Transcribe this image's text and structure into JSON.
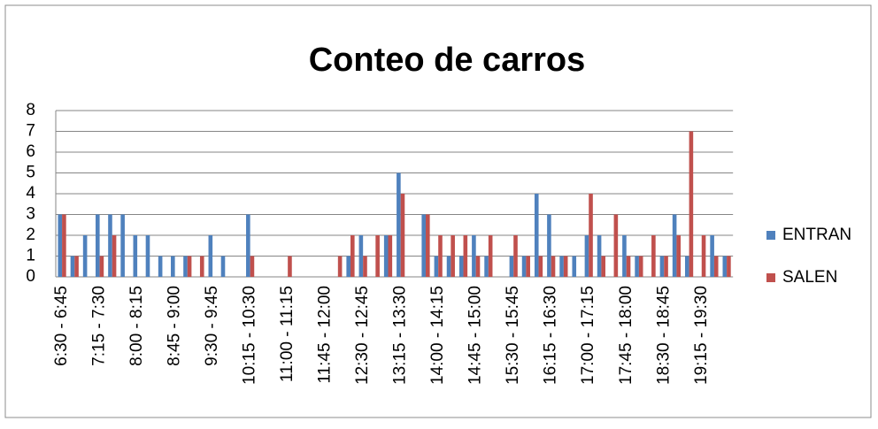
{
  "chart_data": {
    "type": "bar",
    "title": "Conteo de carros",
    "categories": [
      "6:30 - 6:45",
      null,
      null,
      "7:15 - 7:30",
      null,
      null,
      "8:00 - 8:15",
      null,
      null,
      "8:45 - 9:00",
      null,
      null,
      "9:30 - 9:45",
      null,
      null,
      "10:15 - 10:30",
      null,
      null,
      "11:00 - 11:15",
      null,
      null,
      "11:45 - 12:00",
      null,
      null,
      "12:30 - 12:45",
      null,
      null,
      "13:15 - 13:30",
      null,
      null,
      "14:00 - 14:15",
      null,
      null,
      "14:45 - 15:00",
      null,
      null,
      "15:30 - 15:45",
      null,
      null,
      "16:15 - 16:30",
      null,
      null,
      "17:00 - 17:15",
      null,
      null,
      "17:45 - 18:00",
      null,
      null,
      "18:30 - 18:45",
      null,
      null,
      "19:15 - 19:30",
      null,
      null
    ],
    "series": [
      {
        "name": "ENTRAN",
        "color": "#4f81bd",
        "values": [
          3,
          1,
          2,
          3,
          3,
          3,
          2,
          2,
          1,
          1,
          1,
          0,
          2,
          1,
          0,
          3,
          0,
          0,
          0,
          0,
          0,
          0,
          0,
          1,
          2,
          0,
          2,
          5,
          0,
          3,
          1,
          1,
          1,
          2,
          1,
          0,
          1,
          1,
          4,
          3,
          1,
          1,
          2,
          2,
          0,
          2,
          1,
          0,
          1,
          3,
          1,
          0,
          2,
          1
        ]
      },
      {
        "name": "SALEN",
        "color": "#c0504d",
        "values": [
          3,
          1,
          0,
          1,
          2,
          0,
          0,
          0,
          0,
          0,
          1,
          1,
          0,
          0,
          0,
          1,
          0,
          0,
          1,
          0,
          0,
          0,
          1,
          2,
          1,
          2,
          2,
          4,
          0,
          3,
          2,
          2,
          2,
          1,
          2,
          0,
          2,
          1,
          1,
          1,
          1,
          0,
          4,
          1,
          3,
          1,
          1,
          2,
          1,
          2,
          7,
          2,
          1,
          1
        ]
      }
    ],
    "ylim": [
      0,
      8
    ],
    "yticks": [
      0,
      1,
      2,
      3,
      4,
      5,
      6,
      7,
      8
    ],
    "grid": true,
    "legend": "right"
  }
}
